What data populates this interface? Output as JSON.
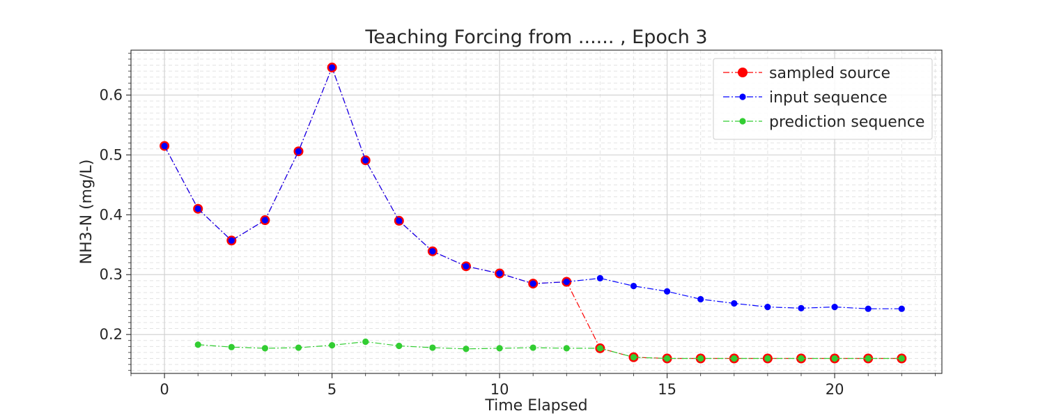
{
  "chart_data": {
    "type": "line",
    "title": "Teaching Forcing from ...... , Epoch 3",
    "xlabel": "Time Elapsed",
    "ylabel": "NH3-N (mg/L)",
    "xlim": [
      -1,
      23.2
    ],
    "ylim": [
      0.135,
      0.675
    ],
    "xticks": [
      0,
      5,
      10,
      15,
      20
    ],
    "yticks": [
      0.2,
      0.3,
      0.4,
      0.5,
      0.6
    ],
    "xtick_labels": [
      "0",
      "5",
      "10",
      "15",
      "20"
    ],
    "ytick_labels": [
      "0.2",
      "0.3",
      "0.4",
      "0.5",
      "0.6"
    ],
    "grid": true,
    "minor_grid": true,
    "legend_position": "top-right",
    "series": [
      {
        "name": "sampled source",
        "color": "#ff0000",
        "marker": "large-circle",
        "linestyle": "dash-dot",
        "x": [
          0,
          1,
          2,
          3,
          4,
          5,
          6,
          7,
          8,
          9,
          10,
          11,
          12,
          13,
          14,
          15,
          16,
          17,
          18,
          19,
          20,
          21,
          22
        ],
        "values": [
          0.515,
          0.41,
          0.357,
          0.391,
          0.506,
          0.646,
          0.491,
          0.39,
          0.339,
          0.314,
          0.302,
          0.285,
          0.288,
          0.177,
          0.162,
          0.16,
          0.16,
          0.16,
          0.16,
          0.16,
          0.16,
          0.16,
          0.16
        ]
      },
      {
        "name": "input sequence",
        "color": "#0000ff",
        "marker": "circle",
        "linestyle": "dash-dot",
        "x": [
          0,
          1,
          2,
          3,
          4,
          5,
          6,
          7,
          8,
          9,
          10,
          11,
          12,
          13,
          14,
          15,
          16,
          17,
          18,
          19,
          20,
          21,
          22
        ],
        "values": [
          0.515,
          0.41,
          0.357,
          0.391,
          0.506,
          0.646,
          0.491,
          0.39,
          0.339,
          0.314,
          0.302,
          0.285,
          0.288,
          0.294,
          0.281,
          0.272,
          0.259,
          0.252,
          0.246,
          0.244,
          0.246,
          0.243,
          0.243
        ]
      },
      {
        "name": "prediction sequence",
        "color": "#32cd32",
        "marker": "circle",
        "linestyle": "dash-dot",
        "x": [
          1,
          2,
          3,
          4,
          5,
          6,
          7,
          8,
          9,
          10,
          11,
          12,
          13,
          14,
          15,
          16,
          17,
          18,
          19,
          20,
          21,
          22
        ],
        "values": [
          0.183,
          0.179,
          0.177,
          0.178,
          0.182,
          0.188,
          0.181,
          0.178,
          0.176,
          0.177,
          0.178,
          0.177,
          0.177,
          0.162,
          0.16,
          0.16,
          0.16,
          0.16,
          0.16,
          0.16,
          0.16,
          0.16
        ]
      }
    ]
  }
}
